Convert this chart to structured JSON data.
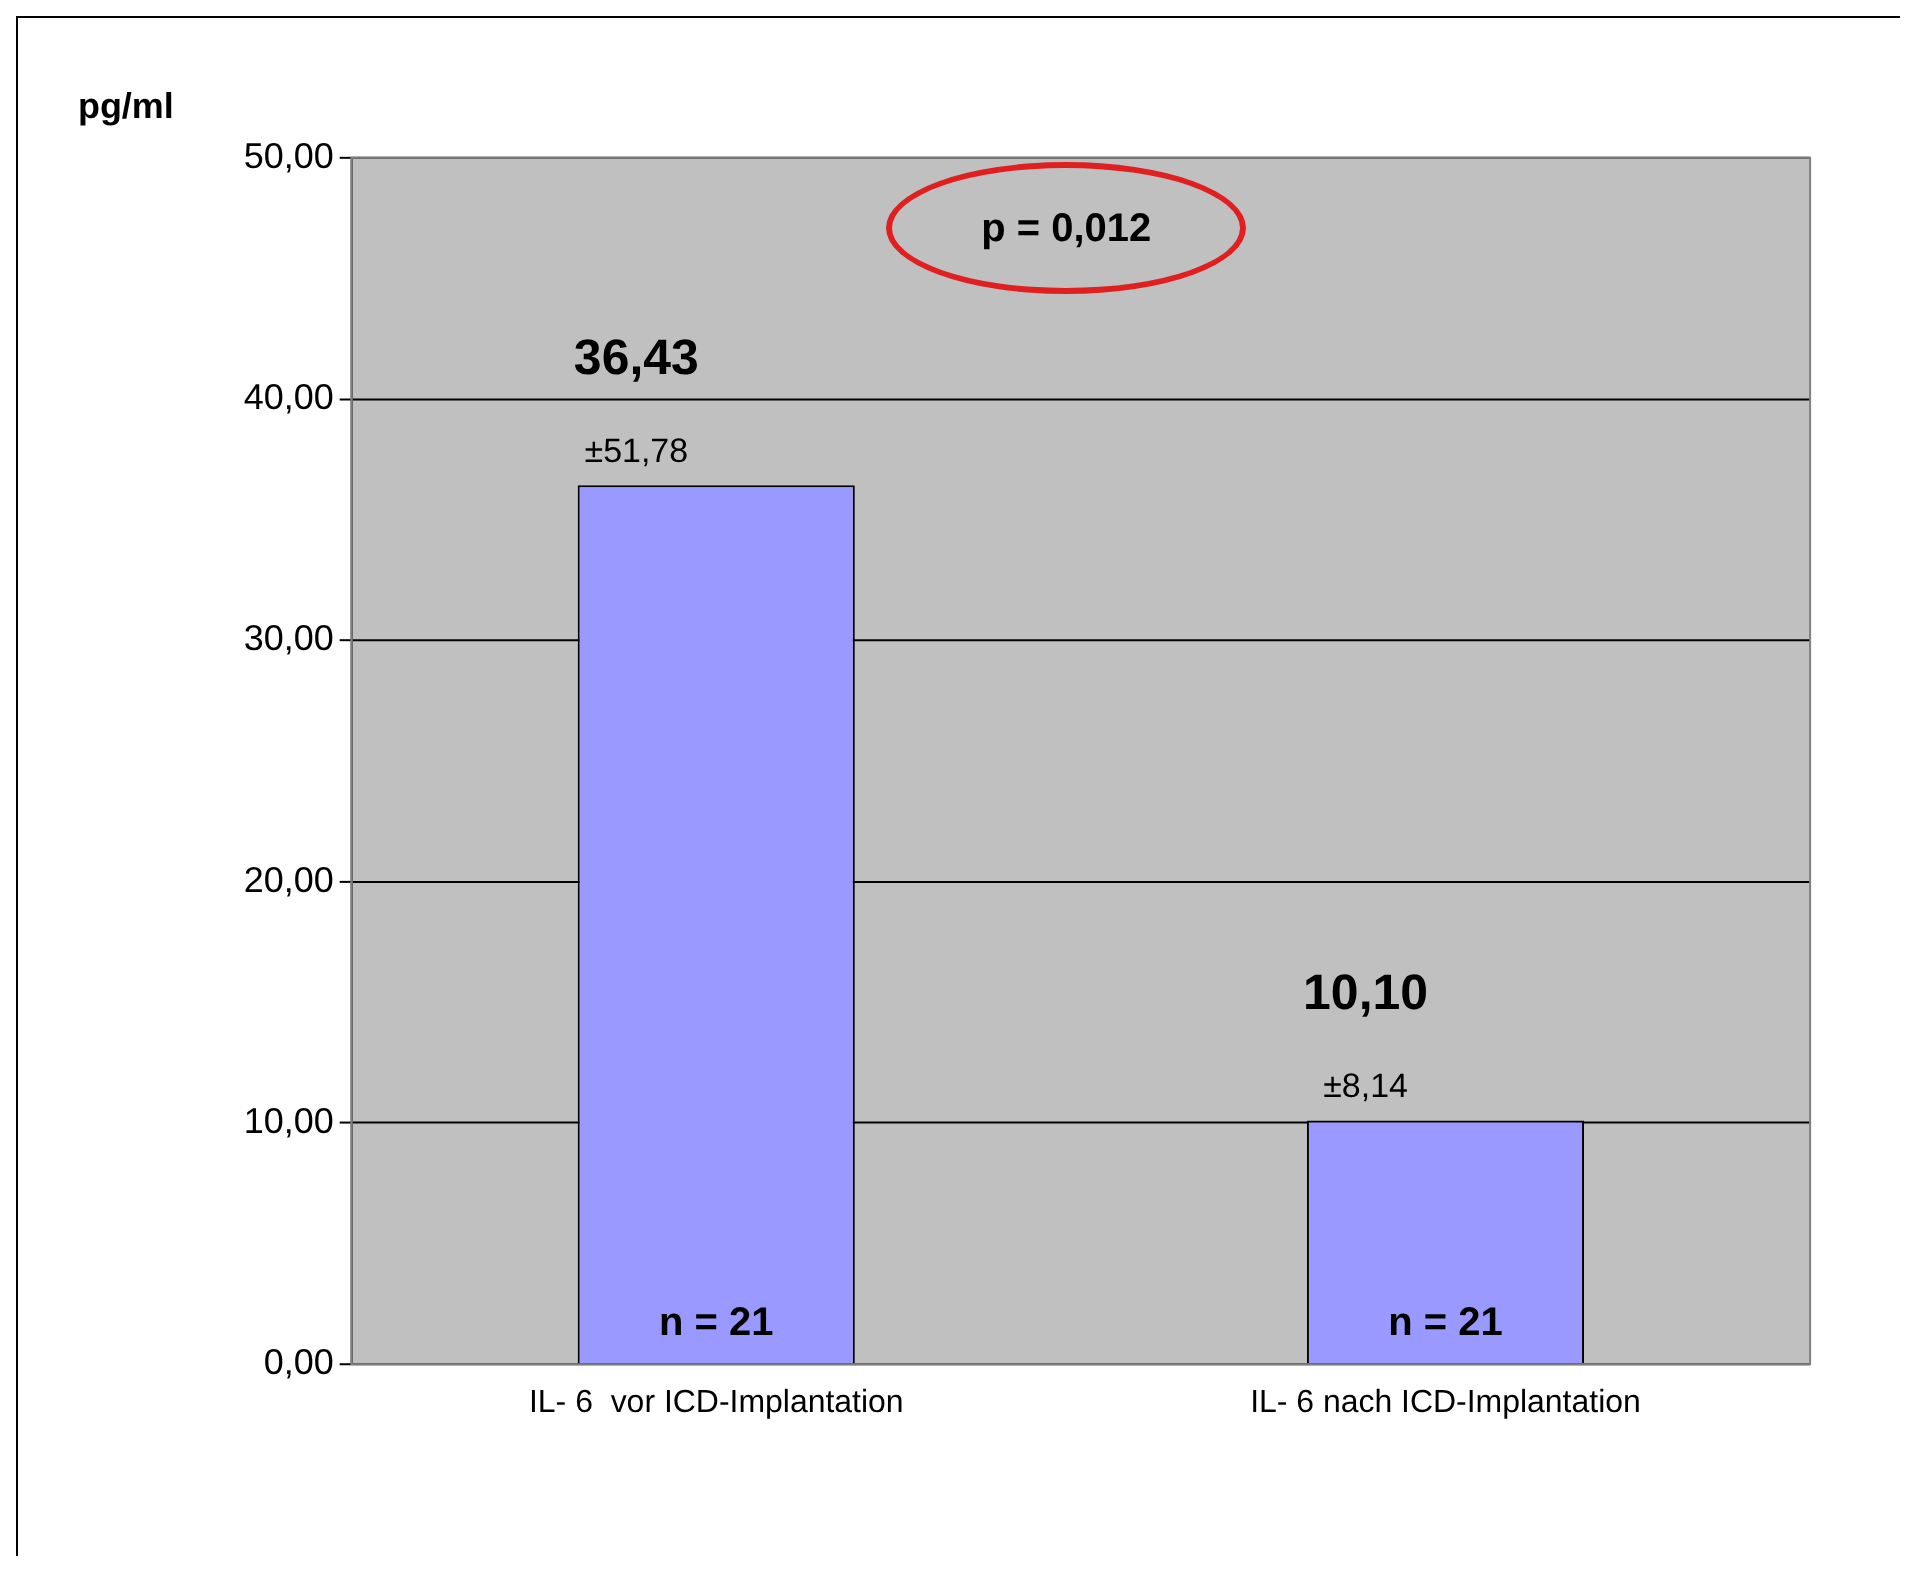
{
  "chart_data": {
    "type": "bar",
    "ylabel": "pg/ml",
    "categories": [
      "IL- 6  vor ICD-Implantation",
      "IL- 6 nach ICD-Implantation"
    ],
    "values": [
      36.43,
      10.1
    ],
    "color": "#9999ff",
    "value_labels": [
      "36,43",
      "10,10"
    ],
    "ylim": [
      0,
      50
    ],
    "yticks": [
      {
        "value": 0,
        "label": "0,00"
      },
      {
        "value": 10,
        "label": "10,00"
      },
      {
        "value": 20,
        "label": "20,00"
      },
      {
        "value": 30,
        "label": "30,00"
      },
      {
        "value": 40,
        "label": "40,00"
      },
      {
        "value": 50,
        "label": "50,00"
      }
    ],
    "grid": "y",
    "legend": false,
    "annotations": [
      "p = 0,012",
      {
        "text": "±51,78",
        "x": "IL- 6  vor ICD-Implantation",
        "y": 36.43
      },
      {
        "text": "±8,14",
        "x": "IL- 6 nach ICD-Implantation",
        "y": 10.1
      },
      {
        "text": "n = 21",
        "x": "IL- 6  vor ICD-Implantation",
        "y": 0
      },
      {
        "text": "n = 21",
        "x": "IL- 6 nach ICD-Implantation",
        "y": 0
      }
    ]
  }
}
